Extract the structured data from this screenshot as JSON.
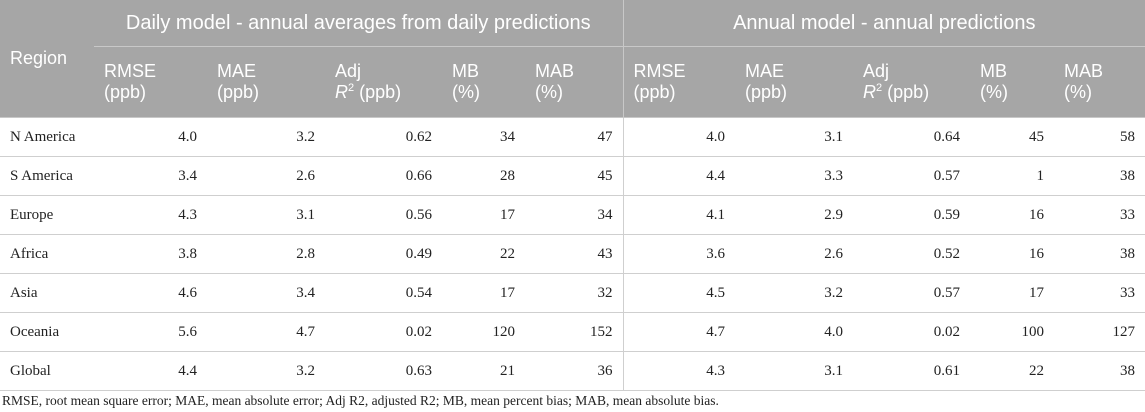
{
  "table": {
    "region_header": "Region",
    "groups": [
      "Daily model - annual averages from daily predictions",
      "Annual model - annual predictions"
    ],
    "columns": [
      {
        "line1": "RMSE",
        "line2": "(ppb)"
      },
      {
        "line1": "MAE",
        "line2": "(ppb)"
      },
      {
        "line1": "Adj",
        "line2_pre": "R",
        "line2_sup": "2",
        "line2_post": " (ppb)"
      },
      {
        "line1": "MB",
        "line2": "(%)"
      },
      {
        "line1": "MAB",
        "line2": "(%)"
      }
    ],
    "rows": [
      {
        "region": "N America",
        "daily": [
          "4.0",
          "3.2",
          "0.62",
          "34",
          "47"
        ],
        "annual": [
          "4.0",
          "3.1",
          "0.64",
          "45",
          "58"
        ]
      },
      {
        "region": "S America",
        "daily": [
          "3.4",
          "2.6",
          "0.66",
          "28",
          "45"
        ],
        "annual": [
          "4.4",
          "3.3",
          "0.57",
          "1",
          "38"
        ]
      },
      {
        "region": "Europe",
        "daily": [
          "4.3",
          "3.1",
          "0.56",
          "17",
          "34"
        ],
        "annual": [
          "4.1",
          "2.9",
          "0.59",
          "16",
          "33"
        ]
      },
      {
        "region": "Africa",
        "daily": [
          "3.8",
          "2.8",
          "0.49",
          "22",
          "43"
        ],
        "annual": [
          "3.6",
          "2.6",
          "0.52",
          "16",
          "38"
        ]
      },
      {
        "region": "Asia",
        "daily": [
          "4.6",
          "3.4",
          "0.54",
          "17",
          "32"
        ],
        "annual": [
          "4.5",
          "3.2",
          "0.57",
          "17",
          "33"
        ]
      },
      {
        "region": "Oceania",
        "daily": [
          "5.6",
          "4.7",
          "0.02",
          "120",
          "152"
        ],
        "annual": [
          "4.7",
          "4.0",
          "0.02",
          "100",
          "127"
        ]
      },
      {
        "region": "Global",
        "daily": [
          "4.4",
          "3.2",
          "0.63",
          "21",
          "36"
        ],
        "annual": [
          "4.3",
          "3.1",
          "0.61",
          "22",
          "38"
        ]
      }
    ]
  },
  "footnote": "RMSE, root mean square error; MAE, mean absolute error; Adj R2, adjusted R2; MB, mean percent bias; MAB, mean absolute bias."
}
